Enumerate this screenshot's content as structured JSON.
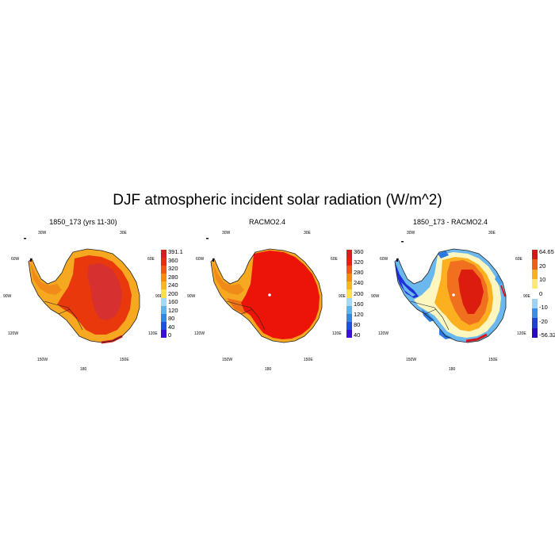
{
  "title": "DJF atmospheric incident solar radiation (W/m^2)",
  "panels": [
    {
      "title": "1850_173 (yrs 11-30)",
      "colorbar": {
        "labels": [
          "391.1",
          "360",
          "320",
          "280",
          "240",
          "200",
          "160",
          "120",
          "80",
          "40",
          "0"
        ],
        "colors": [
          "#d62020",
          "#e4300a",
          "#f05a10",
          "#f88a10",
          "#fcb520",
          "#fde04a",
          "#a6d8f6",
          "#5ab4ee",
          "#2f8ae6",
          "#2050e0",
          "#3a10d6"
        ]
      },
      "longitude_labels": {
        "l30w": "30W",
        "l30e": "30E",
        "l60w": "60W",
        "l60e": "60E",
        "l90w": "90W",
        "l90e": "90E",
        "l120w": "120W",
        "l120e": "120E",
        "l150w": "150W",
        "l150e": "150E",
        "l180": "180"
      }
    },
    {
      "title": "RACMO2.4",
      "colorbar": {
        "labels": [
          "360",
          "320",
          "280",
          "240",
          "200",
          "160",
          "120",
          "80",
          "40"
        ],
        "colors": [
          "#d62020",
          "#e8200c",
          "#f05a10",
          "#f88a10",
          "#fcb520",
          "#fde04a",
          "#a6d8f6",
          "#5ab4ee",
          "#2f8ae6",
          "#2050e0",
          "#3a10d6"
        ]
      },
      "longitude_labels": {
        "l30w": "30W",
        "l30e": "30E",
        "l60w": "60W",
        "l60e": "60E",
        "l90w": "90W",
        "l90e": "90E",
        "l120w": "120W",
        "l120e": "120E",
        "l150w": "150W",
        "l150e": "150E",
        "l180": "180"
      }
    },
    {
      "title": "1850_173 - RACMO2.4",
      "colorbar": {
        "labels": [
          "64.65",
          "20",
          "10",
          "0",
          "-10",
          "-20",
          "-56.32"
        ],
        "colors": [
          "#d4181c",
          "#f06010",
          "#fcb020",
          "#fde870",
          "#ffffff",
          "#9ed2f4",
          "#3a8ee8",
          "#2040d6",
          "#2a0ac4"
        ]
      },
      "longitude_labels": {
        "l30w": "30W",
        "l30e": "30E",
        "l60w": "60W",
        "l60e": "60E",
        "l90w": "90W",
        "l90e": "90E",
        "l120w": "120W",
        "l120e": "120E",
        "l150w": "150W",
        "l150e": "150E",
        "l180": "180"
      }
    }
  ],
  "colors": {
    "land_outer": "#f6a820",
    "peninsula": "#f08a18",
    "interior_model": "#e8380c",
    "interior_racmo": "#ec1408",
    "plateau_model": "#d63030",
    "diff_positive": "#f07020",
    "diff_core": "#dd1c10",
    "diff_neutral": "#fff6c0",
    "diff_cool": "#6ab8ee",
    "diff_strong_cool": "#2030d8"
  }
}
